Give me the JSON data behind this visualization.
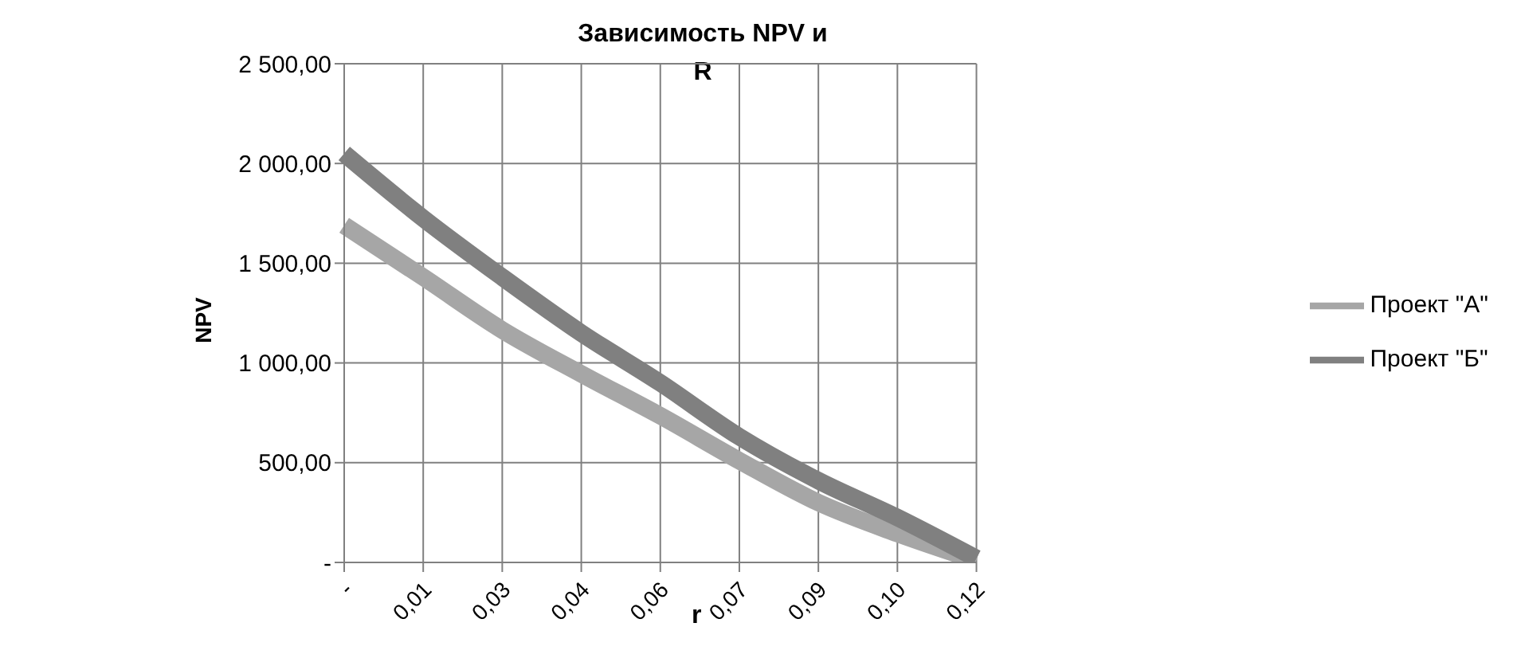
{
  "chart_data": {
    "type": "line",
    "title": "Зависимость NPV и R",
    "xlabel": "r",
    "ylabel": "NPV",
    "categories": [
      "-",
      "0,01",
      "0,03",
      "0,04",
      "0,06",
      "0,07",
      "0,09",
      "0,10",
      "0,12"
    ],
    "series": [
      {
        "name": "Проект \"А\"",
        "color": "#a6a6a6",
        "values": [
          1690,
          1430,
          1165,
          945,
          735,
          510,
          300,
          145,
          10
        ]
      },
      {
        "name": "Проект \"Б\"",
        "color": "#808080",
        "values": [
          2050,
          1725,
          1430,
          1150,
          900,
          630,
          410,
          225,
          20
        ]
      }
    ],
    "ylim": [
      0,
      2500
    ],
    "yticks": [
      {
        "value": 0,
        "label": "-"
      },
      {
        "value": 500,
        "label": "500,00"
      },
      {
        "value": 1000,
        "label": "1 000,00"
      },
      {
        "value": 1500,
        "label": "1 500,00"
      },
      {
        "value": 2000,
        "label": "2 000,00"
      },
      {
        "value": 2500,
        "label": "2 500,00"
      }
    ],
    "grid": true,
    "legend": "right",
    "marker": "none",
    "line_style": "solid"
  }
}
